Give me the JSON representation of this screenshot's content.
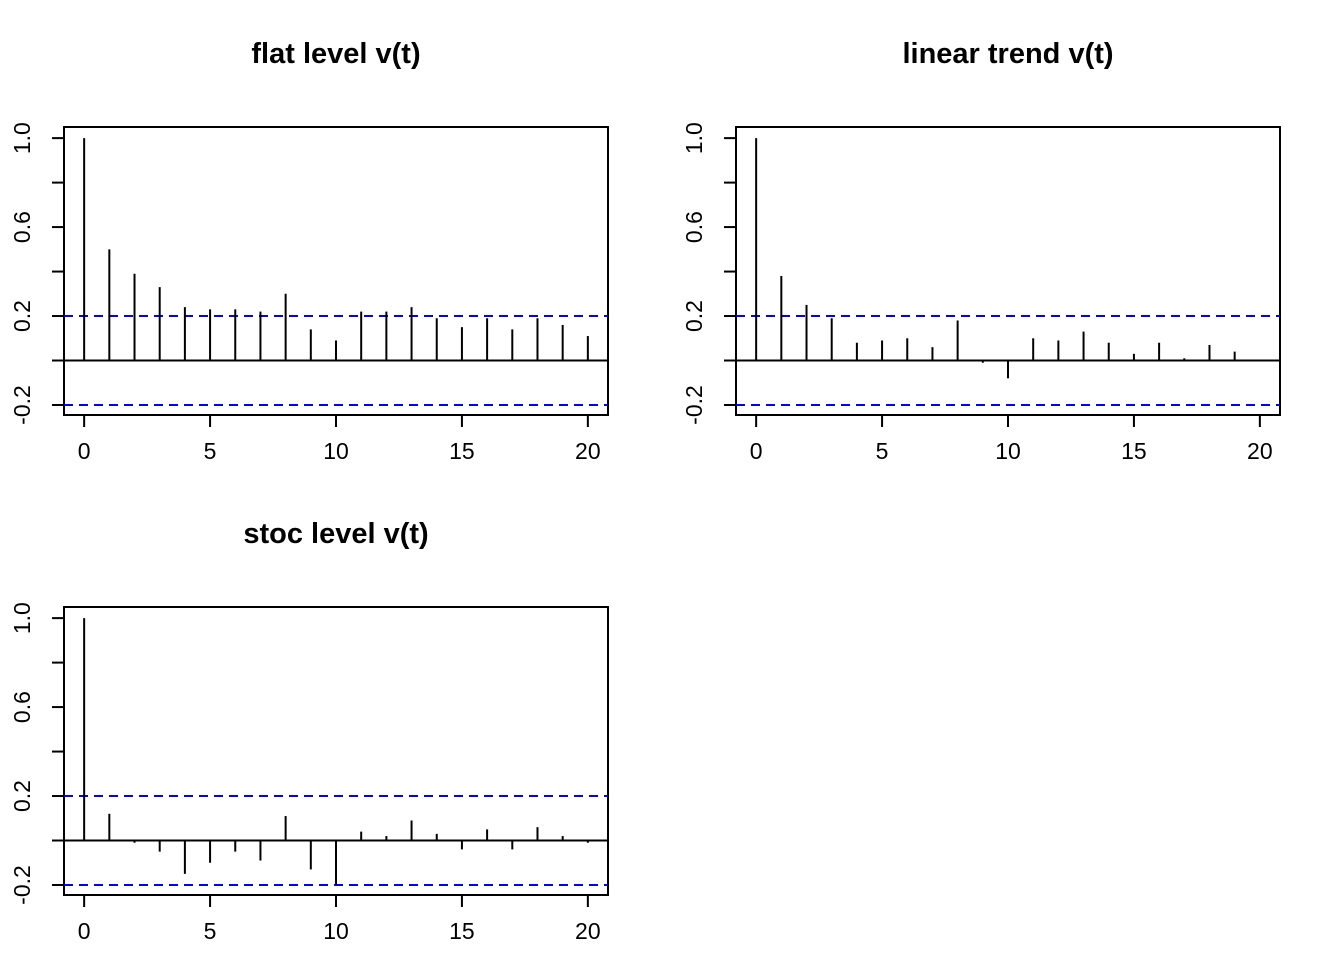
{
  "colors": {
    "bar": "#000000",
    "ci_line": "#0000ff",
    "axis": "#000000",
    "background": "#ffffff"
  },
  "chart_data": [
    {
      "type": "bar",
      "subtype": "acf",
      "title": "flat level v(t)",
      "xlabel": "",
      "ylabel": "",
      "x": [
        0,
        1,
        2,
        3,
        4,
        5,
        6,
        7,
        8,
        9,
        10,
        11,
        12,
        13,
        14,
        15,
        16,
        17,
        18,
        19,
        20
      ],
      "values": [
        1.0,
        0.5,
        0.39,
        0.33,
        0.24,
        0.23,
        0.23,
        0.22,
        0.3,
        0.14,
        0.09,
        0.22,
        0.22,
        0.24,
        0.19,
        0.15,
        0.19,
        0.14,
        0.19,
        0.16,
        0.11
      ],
      "ci": [
        -0.2,
        0.2
      ],
      "xlim": [
        -0.8,
        20.8
      ],
      "ylim": [
        -0.245,
        1.05
      ],
      "xticks": [
        0,
        5,
        10,
        15,
        20
      ],
      "xtick_labels": [
        "0",
        "5",
        "10",
        "15",
        "20"
      ],
      "yticks": [
        -0.2,
        0.0,
        0.2,
        0.4,
        0.6,
        0.8,
        1.0
      ],
      "ytick_labels": [
        "-0.2",
        "",
        "0.2",
        "",
        "0.6",
        "",
        "1.0"
      ],
      "grid": false,
      "legend": "none"
    },
    {
      "type": "bar",
      "subtype": "acf",
      "title": "linear trend v(t)",
      "xlabel": "",
      "ylabel": "",
      "x": [
        0,
        1,
        2,
        3,
        4,
        5,
        6,
        7,
        8,
        9,
        10,
        11,
        12,
        13,
        14,
        15,
        16,
        17,
        18,
        19,
        20
      ],
      "values": [
        1.0,
        0.38,
        0.25,
        0.19,
        0.08,
        0.09,
        0.1,
        0.06,
        0.18,
        -0.01,
        -0.08,
        0.1,
        0.09,
        0.13,
        0.08,
        0.03,
        0.08,
        0.01,
        0.07,
        0.04,
        0.0
      ],
      "ci": [
        -0.2,
        0.2
      ],
      "xlim": [
        -0.8,
        20.8
      ],
      "ylim": [
        -0.245,
        1.05
      ],
      "xticks": [
        0,
        5,
        10,
        15,
        20
      ],
      "xtick_labels": [
        "0",
        "5",
        "10",
        "15",
        "20"
      ],
      "yticks": [
        -0.2,
        0.0,
        0.2,
        0.4,
        0.6,
        0.8,
        1.0
      ],
      "ytick_labels": [
        "-0.2",
        "",
        "0.2",
        "",
        "0.6",
        "",
        "1.0"
      ],
      "grid": false,
      "legend": "none"
    },
    {
      "type": "bar",
      "subtype": "acf",
      "title": "stoc level v(t)",
      "xlabel": "",
      "ylabel": "",
      "x": [
        0,
        1,
        2,
        3,
        4,
        5,
        6,
        7,
        8,
        9,
        10,
        11,
        12,
        13,
        14,
        15,
        16,
        17,
        18,
        19,
        20
      ],
      "values": [
        1.0,
        0.12,
        -0.01,
        -0.05,
        -0.15,
        -0.1,
        -0.05,
        -0.09,
        0.11,
        -0.13,
        -0.2,
        0.04,
        0.02,
        0.09,
        0.03,
        -0.04,
        0.05,
        -0.04,
        0.06,
        0.02,
        -0.01
      ],
      "ci": [
        -0.2,
        0.2
      ],
      "xlim": [
        -0.8,
        20.8
      ],
      "ylim": [
        -0.245,
        1.05
      ],
      "xticks": [
        0,
        5,
        10,
        15,
        20
      ],
      "xtick_labels": [
        "0",
        "5",
        "10",
        "15",
        "20"
      ],
      "yticks": [
        -0.2,
        0.0,
        0.2,
        0.4,
        0.6,
        0.8,
        1.0
      ],
      "ytick_labels": [
        "-0.2",
        "",
        "0.2",
        "",
        "0.6",
        "",
        "1.0"
      ],
      "grid": false,
      "legend": "none"
    }
  ]
}
